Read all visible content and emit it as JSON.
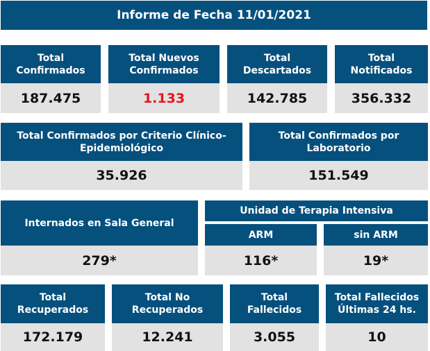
{
  "title": "Informe de Fecha 11/01/2021",
  "colors": {
    "header_bg": "#06507e",
    "value_bg": "#e2e2e2",
    "highlight": "#e8121c"
  },
  "row1": [
    {
      "label": "Total\nConfirmados",
      "value": "187.475"
    },
    {
      "label": "Total Nuevos\nConfirmados",
      "value": "1.133"
    },
    {
      "label": "Total\nDescartados",
      "value": "142.785"
    },
    {
      "label": "Total\nNotificados",
      "value": "356.332"
    }
  ],
  "row2": [
    {
      "label": "Total Confirmados por Criterio Clínico-\nEpidemiológico",
      "value": "35.926"
    },
    {
      "label": "Total Confirmados por\nLaboratorio",
      "value": "151.549"
    }
  ],
  "row3": {
    "general": {
      "label": "Internados en Sala General",
      "value": "279*"
    },
    "uti": {
      "label": "Unidad de Terapia Intensiva",
      "arm": {
        "label": "ARM",
        "value": "116*"
      },
      "sin_arm": {
        "label": "sin ARM",
        "value": "19*"
      }
    }
  },
  "row4": [
    {
      "label": "Total\nRecuperados",
      "value": "172.179"
    },
    {
      "label": "Total No\nRecuperados",
      "value": "12.241"
    },
    {
      "label": "Total\nFallecidos",
      "value": "3.055"
    },
    {
      "label": "Total Fallecidos\nÚltimas 24 hs.",
      "value": "10"
    }
  ]
}
